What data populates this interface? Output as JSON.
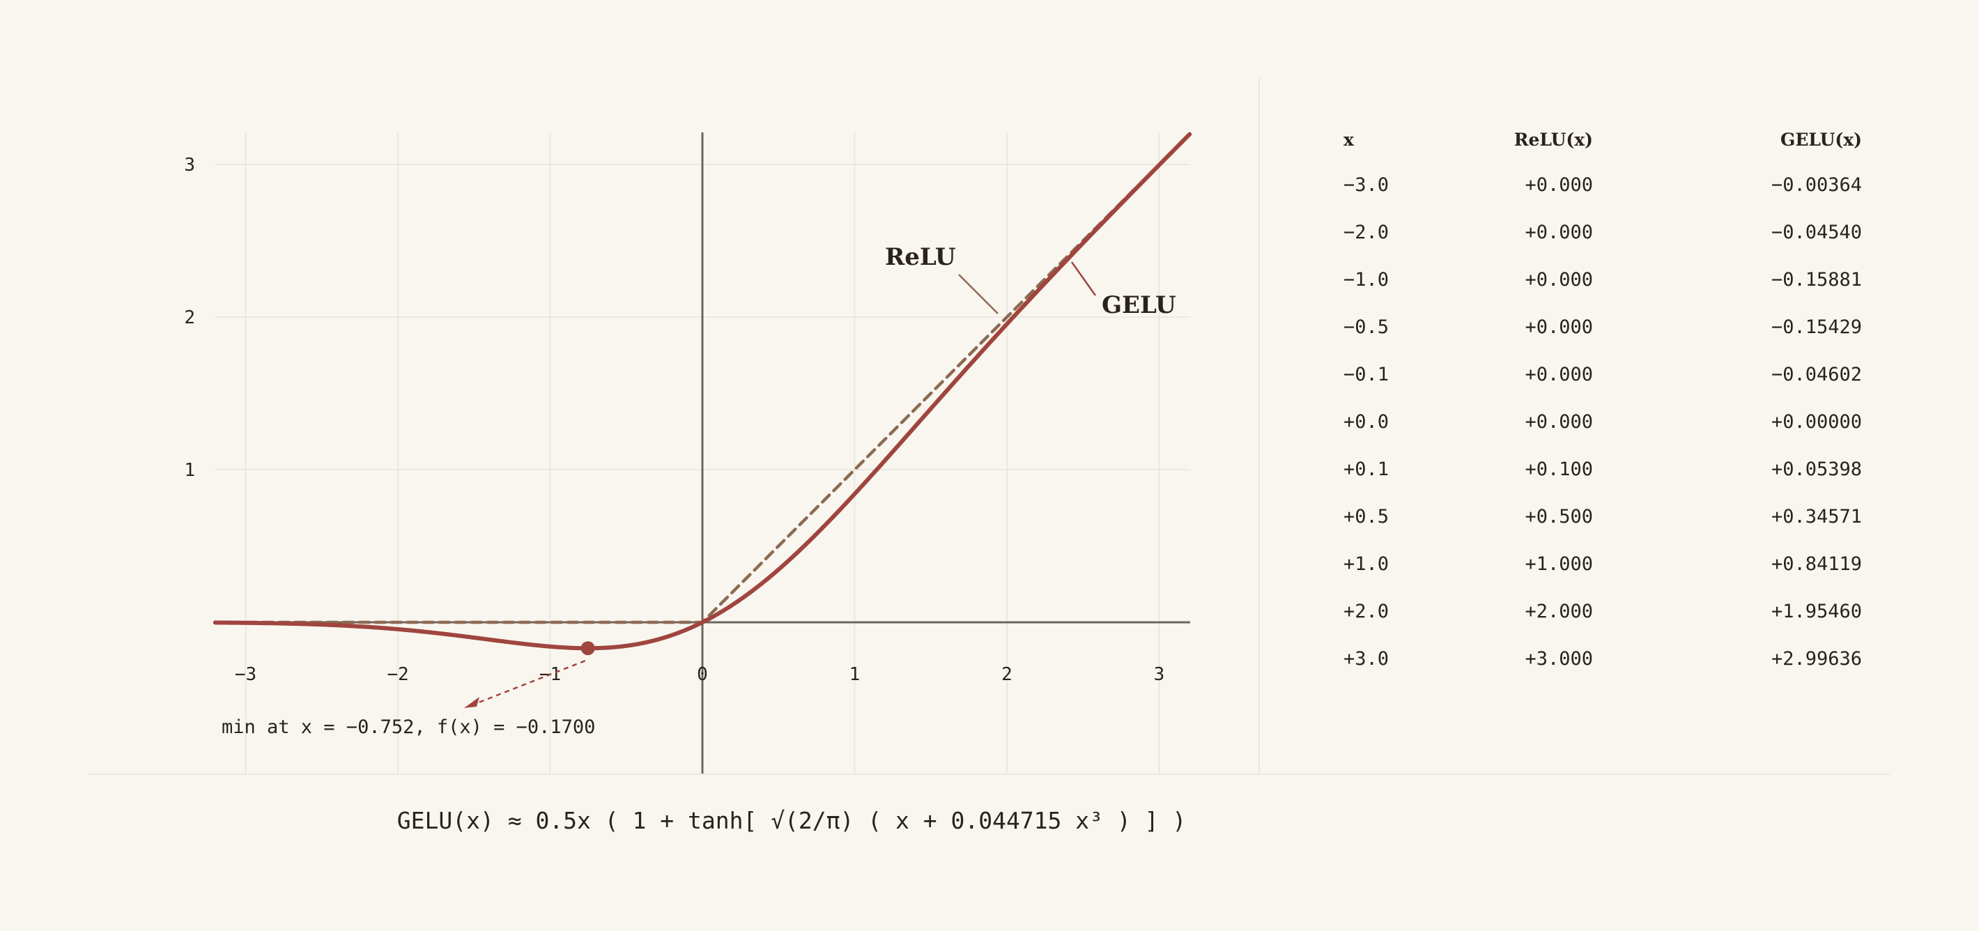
{
  "chart_data": {
    "type": "line",
    "title": "",
    "xlabel": "",
    "ylabel": "",
    "xlim": [
      -3.2,
      3.2
    ],
    "ylim": [
      -1.0,
      3.2
    ],
    "x_ticks": [
      "−3",
      "−2",
      "−1",
      "0",
      "1",
      "2",
      "3"
    ],
    "y_ticks": [
      "1",
      "2",
      "3"
    ],
    "grid": true,
    "series": [
      {
        "name": "ReLU",
        "function": "relu",
        "color": "#8c6b52",
        "style": "dashed"
      },
      {
        "name": "GELU",
        "function": "gelu",
        "color": "#a0453e",
        "style": "solid"
      }
    ],
    "annotations": [
      {
        "text": "min at x = −0.752, f(x) = −0.1700",
        "x": -0.752,
        "y": -0.17
      }
    ]
  },
  "table": {
    "headers": {
      "x": "x",
      "relu": "ReLU(x)",
      "gelu": "GELU(x)"
    },
    "rows": [
      {
        "x": "−3.0",
        "relu": "+0.000",
        "gelu": "−0.00364"
      },
      {
        "x": "−2.0",
        "relu": "+0.000",
        "gelu": "−0.04540"
      },
      {
        "x": "−1.0",
        "relu": "+0.000",
        "gelu": "−0.15881"
      },
      {
        "x": "−0.5",
        "relu": "+0.000",
        "gelu": "−0.15429"
      },
      {
        "x": "−0.1",
        "relu": "+0.000",
        "gelu": "−0.04602"
      },
      {
        "x": "+0.0",
        "relu": "+0.000",
        "gelu": "+0.00000"
      },
      {
        "x": "+0.1",
        "relu": "+0.100",
        "gelu": "+0.05398"
      },
      {
        "x": "+0.5",
        "relu": "+0.500",
        "gelu": "+0.34571"
      },
      {
        "x": "+1.0",
        "relu": "+1.000",
        "gelu": "+0.84119"
      },
      {
        "x": "+2.0",
        "relu": "+2.000",
        "gelu": "+1.95460"
      },
      {
        "x": "+3.0",
        "relu": "+3.000",
        "gelu": "+2.99636"
      }
    ]
  },
  "formula": "GELU(x) ≈ 0.5x ( 1 + tanh[ √(2/π) ( x + 0.044715 x³ ) ] )",
  "colors": {
    "background": "#f9f6f0",
    "gelu": "#a0453e",
    "relu": "#8c6b52",
    "axis": "#6b6560",
    "grid": "#e8e3db",
    "text": "#2a2220"
  }
}
